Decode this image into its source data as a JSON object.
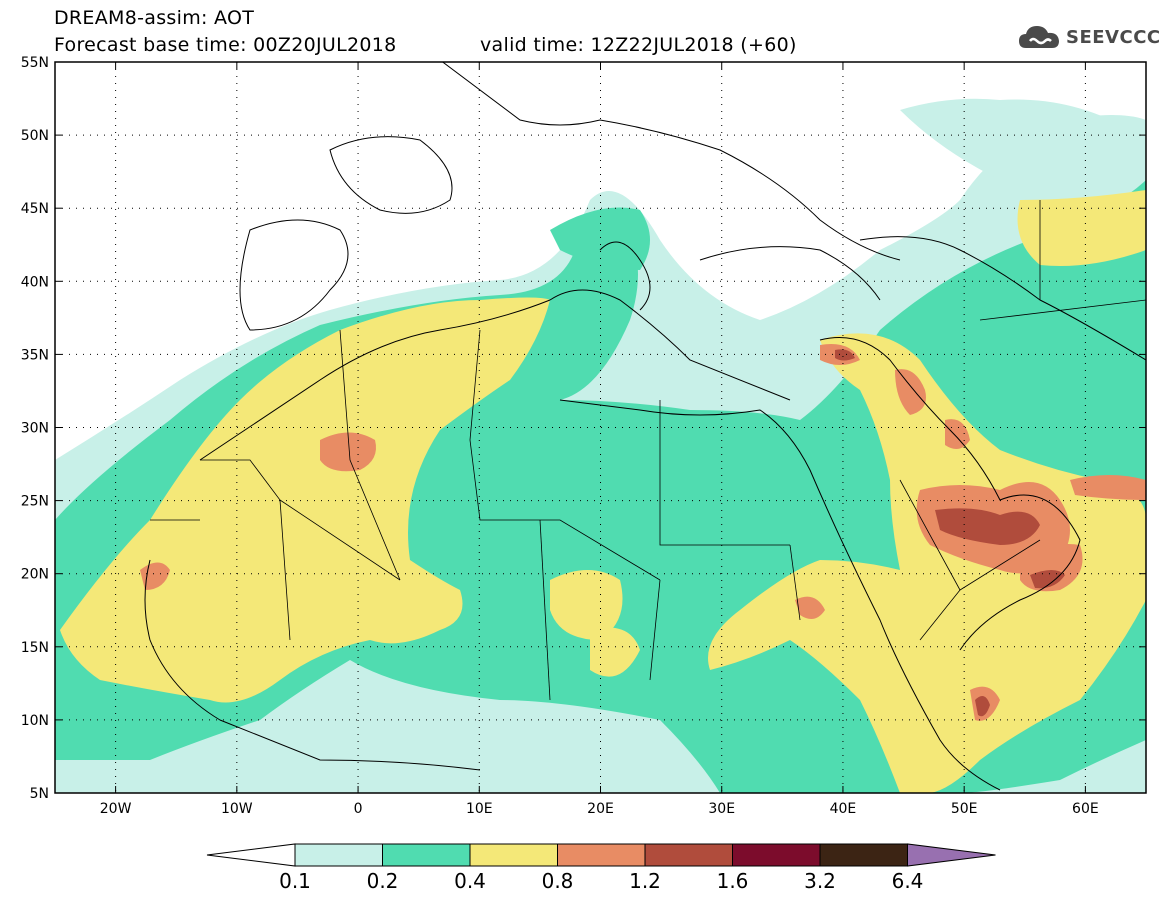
{
  "header": {
    "line1": "DREAM8-assim: AOT",
    "line2": "Forecast base time: 00Z20JUL2018",
    "valid": "valid time: 12Z22JUL2018 (+60)"
  },
  "logo": {
    "text": "SEEVCCC",
    "icon": "cloud-icon",
    "color": "#4a4a4a"
  },
  "map": {
    "lat_labels": [
      "55N",
      "50N",
      "45N",
      "40N",
      "35N",
      "30N",
      "25N",
      "20N",
      "15N",
      "10N",
      "5N"
    ],
    "lon_labels": [
      "20W",
      "10W",
      "0",
      "10E",
      "20E",
      "30E",
      "40E",
      "50E",
      "60E"
    ]
  },
  "colorbar": {
    "labels": [
      "0.1",
      "0.2",
      "0.4",
      "0.8",
      "1.2",
      "1.6",
      "3.2",
      "6.4"
    ],
    "colors": [
      "#c8f0e8",
      "#50dcb0",
      "#f4e878",
      "#e88c64",
      "#b04c3c",
      "#7c0c2c",
      "#3c2414",
      "#9870b0"
    ],
    "low_color": "#ffffff"
  }
}
